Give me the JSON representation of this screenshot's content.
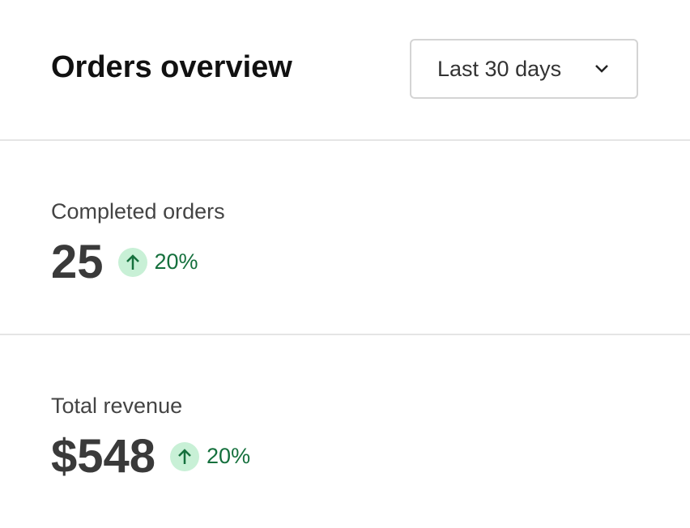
{
  "header": {
    "title": "Orders overview",
    "period": "Last 30 days"
  },
  "stats": [
    {
      "label": "Completed orders",
      "value": "25",
      "change": "20%"
    },
    {
      "label": "Total revenue",
      "value": "$548",
      "change": "20%"
    }
  ]
}
